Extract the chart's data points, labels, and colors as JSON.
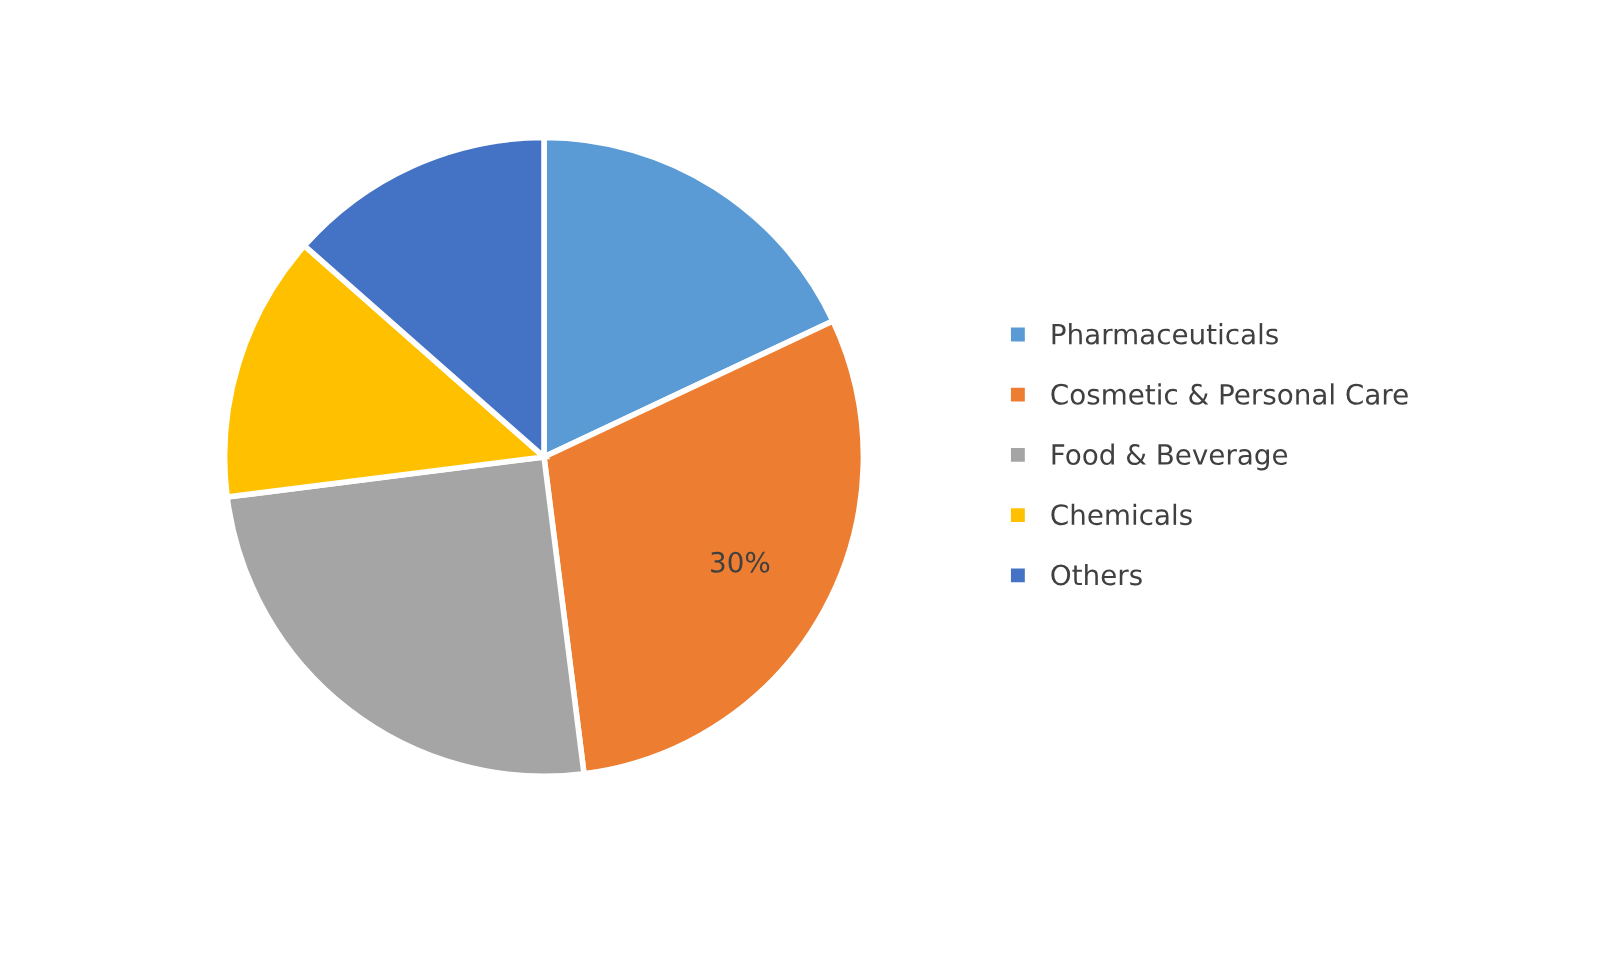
{
  "chart_data": {
    "type": "pie",
    "categories": [
      "Pharmaceuticals",
      "Cosmetic & Personal Care",
      "Food & Beverage",
      "Chemicals",
      "Others"
    ],
    "values": [
      18,
      30,
      25,
      13.5,
      13.5
    ],
    "colors": [
      "#5b9bd5",
      "#ed7d31",
      "#a5a5a5",
      "#ffc000",
      "#4472c4"
    ],
    "value_labels": [
      null,
      "30%",
      null,
      null,
      null
    ],
    "legend": "right"
  }
}
